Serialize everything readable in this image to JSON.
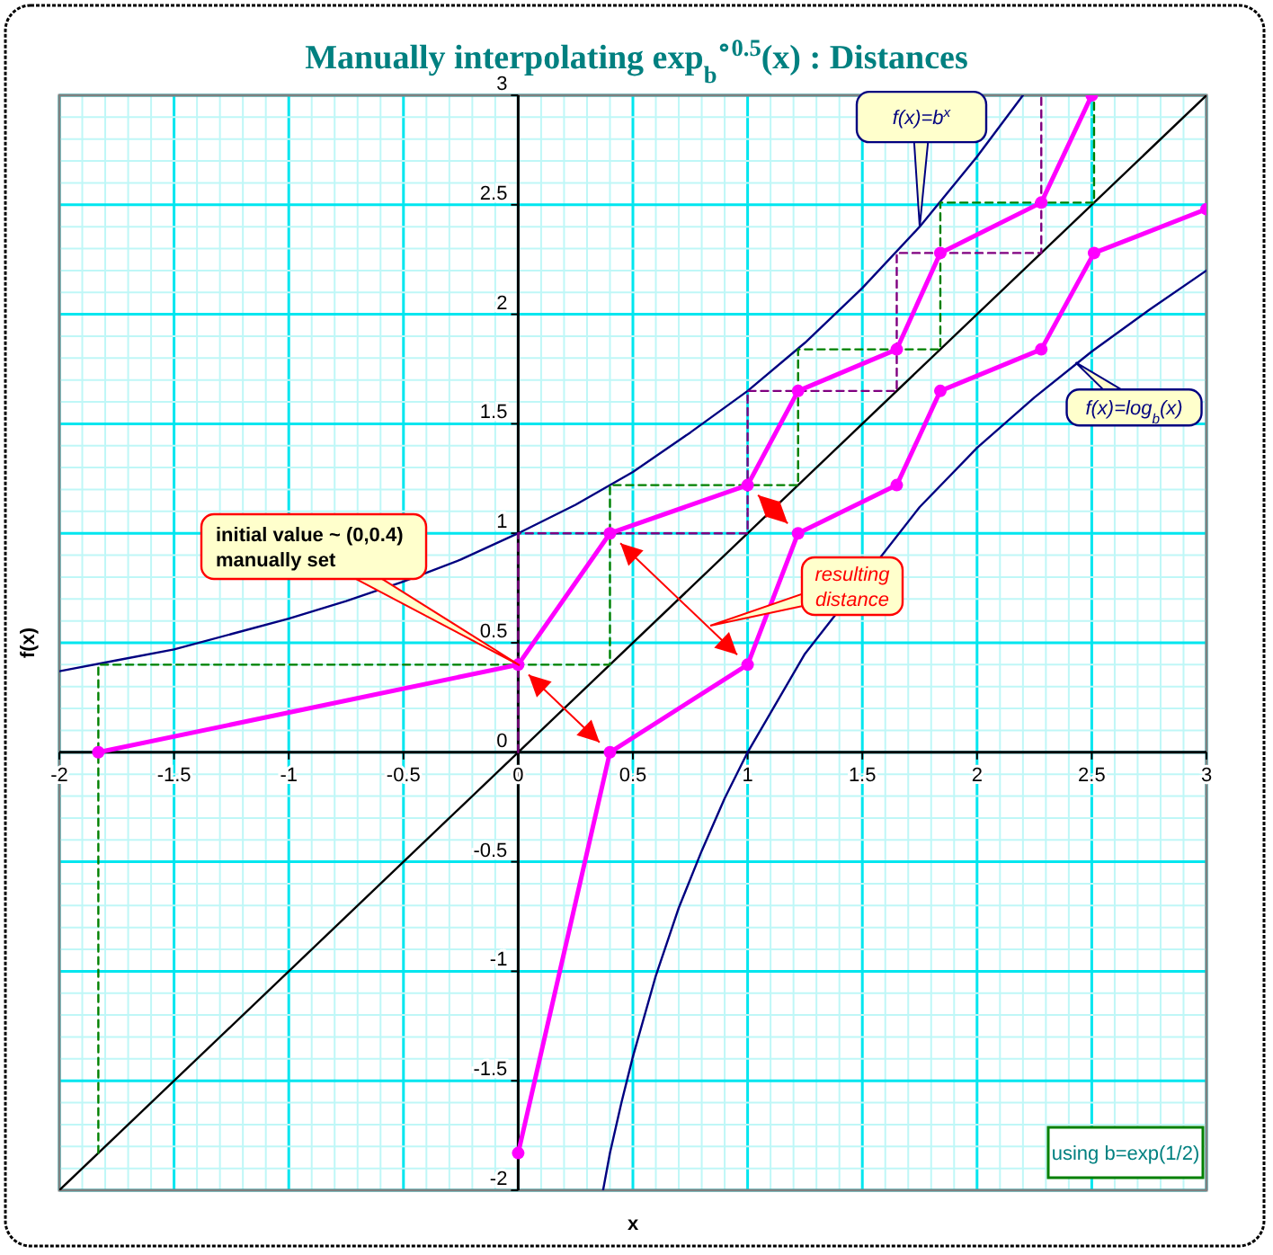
{
  "chart_data": {
    "type": "line",
    "title": "Manually interpolating exp$_{b}$$^{∘0.5}$(x) : Distances",
    "xlabel": "x",
    "ylabel": "f(x)",
    "xlim": [
      -2,
      3
    ],
    "ylim": [
      -2,
      3
    ],
    "xticks": [
      -2,
      -1.5,
      -1,
      -0.5,
      0,
      0.5,
      1,
      1.5,
      2,
      2.5,
      3
    ],
    "yticks": [
      -2,
      -1.5,
      -1,
      -0.5,
      0,
      0.5,
      1,
      1.5,
      2,
      2.5,
      3
    ],
    "grid": true,
    "series": [
      {
        "color": "#000080",
        "marker": "none",
        "line_style": "solid",
        "x": [
          -2,
          -1.75,
          -1.5,
          -1.25,
          -1,
          -0.75,
          -0.5,
          -0.25,
          0,
          0.25,
          0.5,
          0.75,
          1,
          1.25,
          1.5,
          1.75,
          2,
          2.2
        ],
        "values": [
          0.37,
          0.42,
          0.47,
          0.54,
          0.61,
          0.69,
          0.78,
          0.88,
          1,
          1.13,
          1.28,
          1.46,
          1.65,
          1.87,
          2.12,
          2.4,
          2.72,
          3
        ]
      },
      {
        "color": "#000000",
        "marker": "none",
        "line_style": "solid",
        "x": [
          -2,
          3
        ],
        "values": [
          -2,
          3
        ]
      },
      {
        "color": "#000080",
        "marker": "none",
        "line_style": "solid",
        "x": [
          0.37,
          0.4,
          0.45,
          0.5,
          0.6,
          0.7,
          0.8,
          0.9,
          1,
          1.25,
          1.75,
          2,
          2.25,
          2.5,
          2.75,
          3
        ],
        "values": [
          -2,
          -1.83,
          -1.6,
          -1.39,
          -1.02,
          -0.71,
          -0.45,
          -0.21,
          0,
          0.45,
          1.12,
          1.39,
          1.62,
          1.83,
          2.02,
          2.2
        ]
      },
      {
        "color": "#008000",
        "marker": "none",
        "line_style": "dashed",
        "x": [
          -1.83,
          -1.83,
          0.4,
          0.4,
          1.22,
          1.22,
          1.84,
          1.84,
          2.51,
          2.51
        ],
        "values": [
          -1.83,
          0.4,
          0.4,
          1.22,
          1.22,
          1.84,
          1.84,
          2.51,
          2.51,
          3
        ]
      },
      {
        "color": "#800080",
        "marker": "none",
        "line_style": "dashed",
        "x": [
          0,
          0,
          1,
          1,
          1.65,
          1.65,
          2.28,
          2.28
        ],
        "values": [
          0,
          1,
          1,
          1.65,
          1.65,
          2.28,
          2.28,
          3
        ]
      },
      {
        "color": "#ff00ff",
        "marker": "circle",
        "line_style": "solid",
        "x": [
          -1.83,
          0,
          0.4,
          1,
          1.22,
          1.65,
          1.84,
          2.28,
          2.5
        ],
        "values": [
          0,
          0.4,
          1,
          1.22,
          1.65,
          1.84,
          2.28,
          2.51,
          3
        ]
      },
      {
        "color": "#ff00ff",
        "marker": "circle",
        "line_style": "solid",
        "x": [
          0,
          0.4,
          1,
          1.22,
          1.65,
          1.84,
          2.28,
          2.51,
          3
        ],
        "values": [
          -1.83,
          0,
          0.4,
          1,
          1.22,
          1.65,
          1.84,
          2.28,
          2.48
        ]
      }
    ],
    "annotations": [
      {
        "text": "f(x)=b$^{x}$",
        "x": 1.75,
        "y": 2.4
      },
      {
        "text": "f(x)=log$_{b}$(x)",
        "x": 2.43,
        "y": 1.78
      },
      "initial value ~ (0,0.4)\nmanually set",
      "resulting\ndistance",
      "using b=exp(1/2)"
    ]
  }
}
